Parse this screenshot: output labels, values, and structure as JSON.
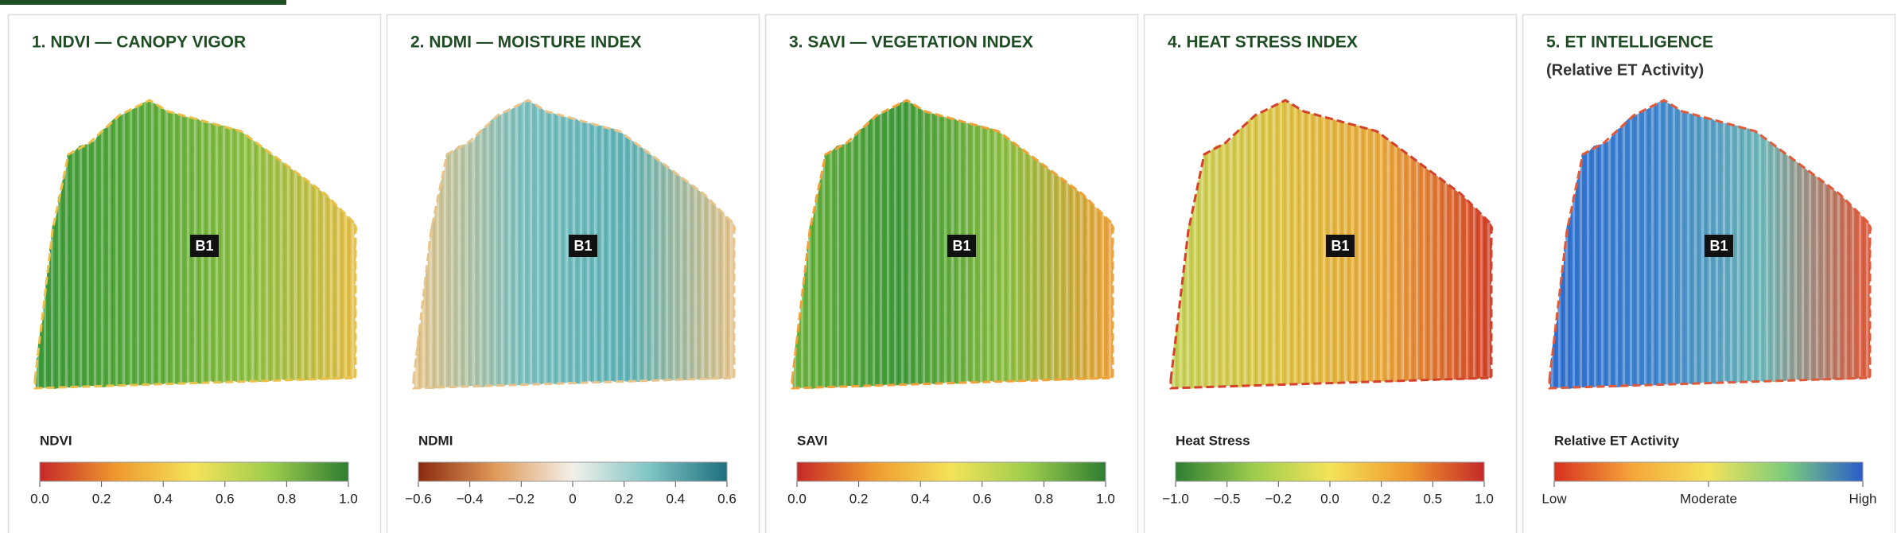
{
  "panels": [
    {
      "title": "1. NDVI — CANOPY VIGOR",
      "marker": "B1",
      "map_colors": [
        "#3d9a3a",
        "#5aab3c",
        "#8cc043",
        "#e8c04a"
      ],
      "legend": {
        "label": "NDVI",
        "ticks": [
          "0.0",
          "0.2",
          "0.4",
          "0.6",
          "0.8",
          "1.0"
        ],
        "colors": [
          "#c62828",
          "#ef9a2f",
          "#f4e35a",
          "#9ccc4c",
          "#2e7d32"
        ]
      }
    },
    {
      "title": "2. NDMI — MOISTURE INDEX",
      "marker": "B1",
      "map_colors": [
        "#e8c78c",
        "#7cc0bf",
        "#5fb4b8",
        "#e6c48b"
      ],
      "legend": {
        "label": "NDMI",
        "ticks": [
          "−0.6",
          "−0.4",
          "−0.2",
          "0",
          "0.2",
          "0.4",
          "0.6"
        ],
        "colors": [
          "#8b2a0e",
          "#e09a5a",
          "#f3f0ea",
          "#7fc4c4",
          "#1f6f7f"
        ]
      }
    },
    {
      "title": "3. SAVI — VEGETATION INDEX",
      "marker": "B1",
      "map_colors": [
        "#6db43f",
        "#3f9a3a",
        "#8cc043",
        "#f0a23a"
      ],
      "legend": {
        "label": "SAVI",
        "ticks": [
          "0.0",
          "0.2",
          "0.4",
          "0.6",
          "0.8",
          "1.0"
        ],
        "colors": [
          "#c62828",
          "#ef9a2f",
          "#f4e35a",
          "#9ccc4c",
          "#2e7d32"
        ]
      }
    },
    {
      "title": "4. HEAT STRESS INDEX",
      "marker": "B1",
      "map_colors": [
        "#c6d35a",
        "#dfc545",
        "#e9a83c",
        "#d4402a"
      ],
      "legend": {
        "label": "Heat Stress",
        "ticks": [
          "−1.0",
          "−0.5",
          "−0.2",
          "0.0",
          "0.2",
          "0.5",
          "1.0"
        ],
        "colors": [
          "#2e7d32",
          "#9ccc4c",
          "#f4e35a",
          "#ef9a2f",
          "#c62828"
        ]
      }
    },
    {
      "title": "5. ET INTELLIGENCE",
      "subtitle": "(Relative ET Activity)",
      "marker": "B1",
      "map_colors": [
        "#2f6fd0",
        "#3f86d0",
        "#6fb8b8",
        "#e2593a"
      ],
      "legend": {
        "label": "Relative ET Activity",
        "ticks": [
          "Low",
          "Moderate",
          "High"
        ],
        "colors": [
          "#d7301f",
          "#f5a53a",
          "#f4e35a",
          "#7ccc7c",
          "#2b5cc8"
        ]
      }
    }
  ]
}
